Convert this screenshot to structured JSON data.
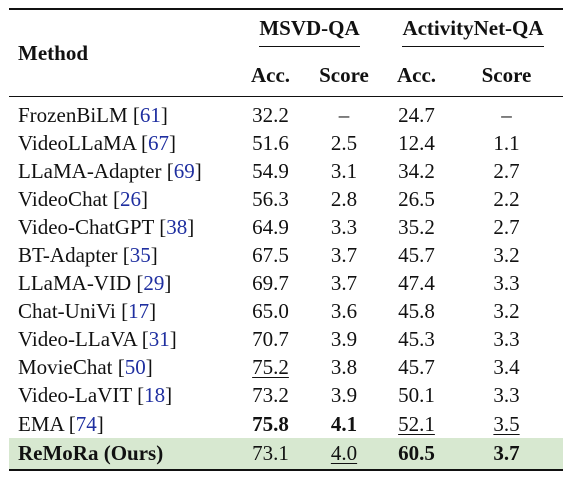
{
  "header": {
    "method_label": "Method",
    "groups": [
      {
        "label": "MSVD-QA"
      },
      {
        "label": "ActivityNet-QA"
      }
    ],
    "sub_labels": [
      "Acc.",
      "Score",
      "Acc.",
      "Score"
    ]
  },
  "rows": [
    {
      "name": "FrozenBiLM",
      "ref": "61",
      "msvd_acc": "32.2",
      "msvd_score": "–",
      "anet_acc": "24.7",
      "anet_score": "–"
    },
    {
      "name": "VideoLLaMA",
      "ref": "67",
      "msvd_acc": "51.6",
      "msvd_score": "2.5",
      "anet_acc": "12.4",
      "anet_score": "1.1"
    },
    {
      "name": "LLaMA-Adapter",
      "ref": "69",
      "msvd_acc": "54.9",
      "msvd_score": "3.1",
      "anet_acc": "34.2",
      "anet_score": "2.7"
    },
    {
      "name": "VideoChat",
      "ref": "26",
      "msvd_acc": "56.3",
      "msvd_score": "2.8",
      "anet_acc": "26.5",
      "anet_score": "2.2"
    },
    {
      "name": "Video-ChatGPT",
      "ref": "38",
      "msvd_acc": "64.9",
      "msvd_score": "3.3",
      "anet_acc": "35.2",
      "anet_score": "2.7"
    },
    {
      "name": "BT-Adapter",
      "ref": "35",
      "msvd_acc": "67.5",
      "msvd_score": "3.7",
      "anet_acc": "45.7",
      "anet_score": "3.2"
    },
    {
      "name": "LLaMA-VID",
      "ref": "29",
      "msvd_acc": "69.7",
      "msvd_score": "3.7",
      "anet_acc": "47.4",
      "anet_score": "3.3"
    },
    {
      "name": "Chat-UniVi",
      "ref": "17",
      "msvd_acc": "65.0",
      "msvd_score": "3.6",
      "anet_acc": "45.8",
      "anet_score": "3.2"
    },
    {
      "name": "Video-LLaVA",
      "ref": "31",
      "msvd_acc": "70.7",
      "msvd_score": "3.9",
      "anet_acc": "45.3",
      "anet_score": "3.3"
    },
    {
      "name": "MovieChat",
      "ref": "50",
      "msvd_acc": "75.2",
      "msvd_score": "3.8",
      "anet_acc": "45.7",
      "anet_score": "3.4"
    },
    {
      "name": "Video-LaVIT",
      "ref": "18",
      "msvd_acc": "73.2",
      "msvd_score": "3.9",
      "anet_acc": "50.1",
      "anet_score": "3.3"
    },
    {
      "name": "EMA",
      "ref": "74",
      "msvd_acc": "75.8",
      "msvd_score": "4.1",
      "anet_acc": "52.1",
      "anet_score": "3.5"
    },
    {
      "name": "ReMoRa (Ours)",
      "msvd_acc": "73.1",
      "msvd_score": "4.0",
      "anet_acc": "60.5",
      "anet_score": "3.7"
    }
  ]
}
